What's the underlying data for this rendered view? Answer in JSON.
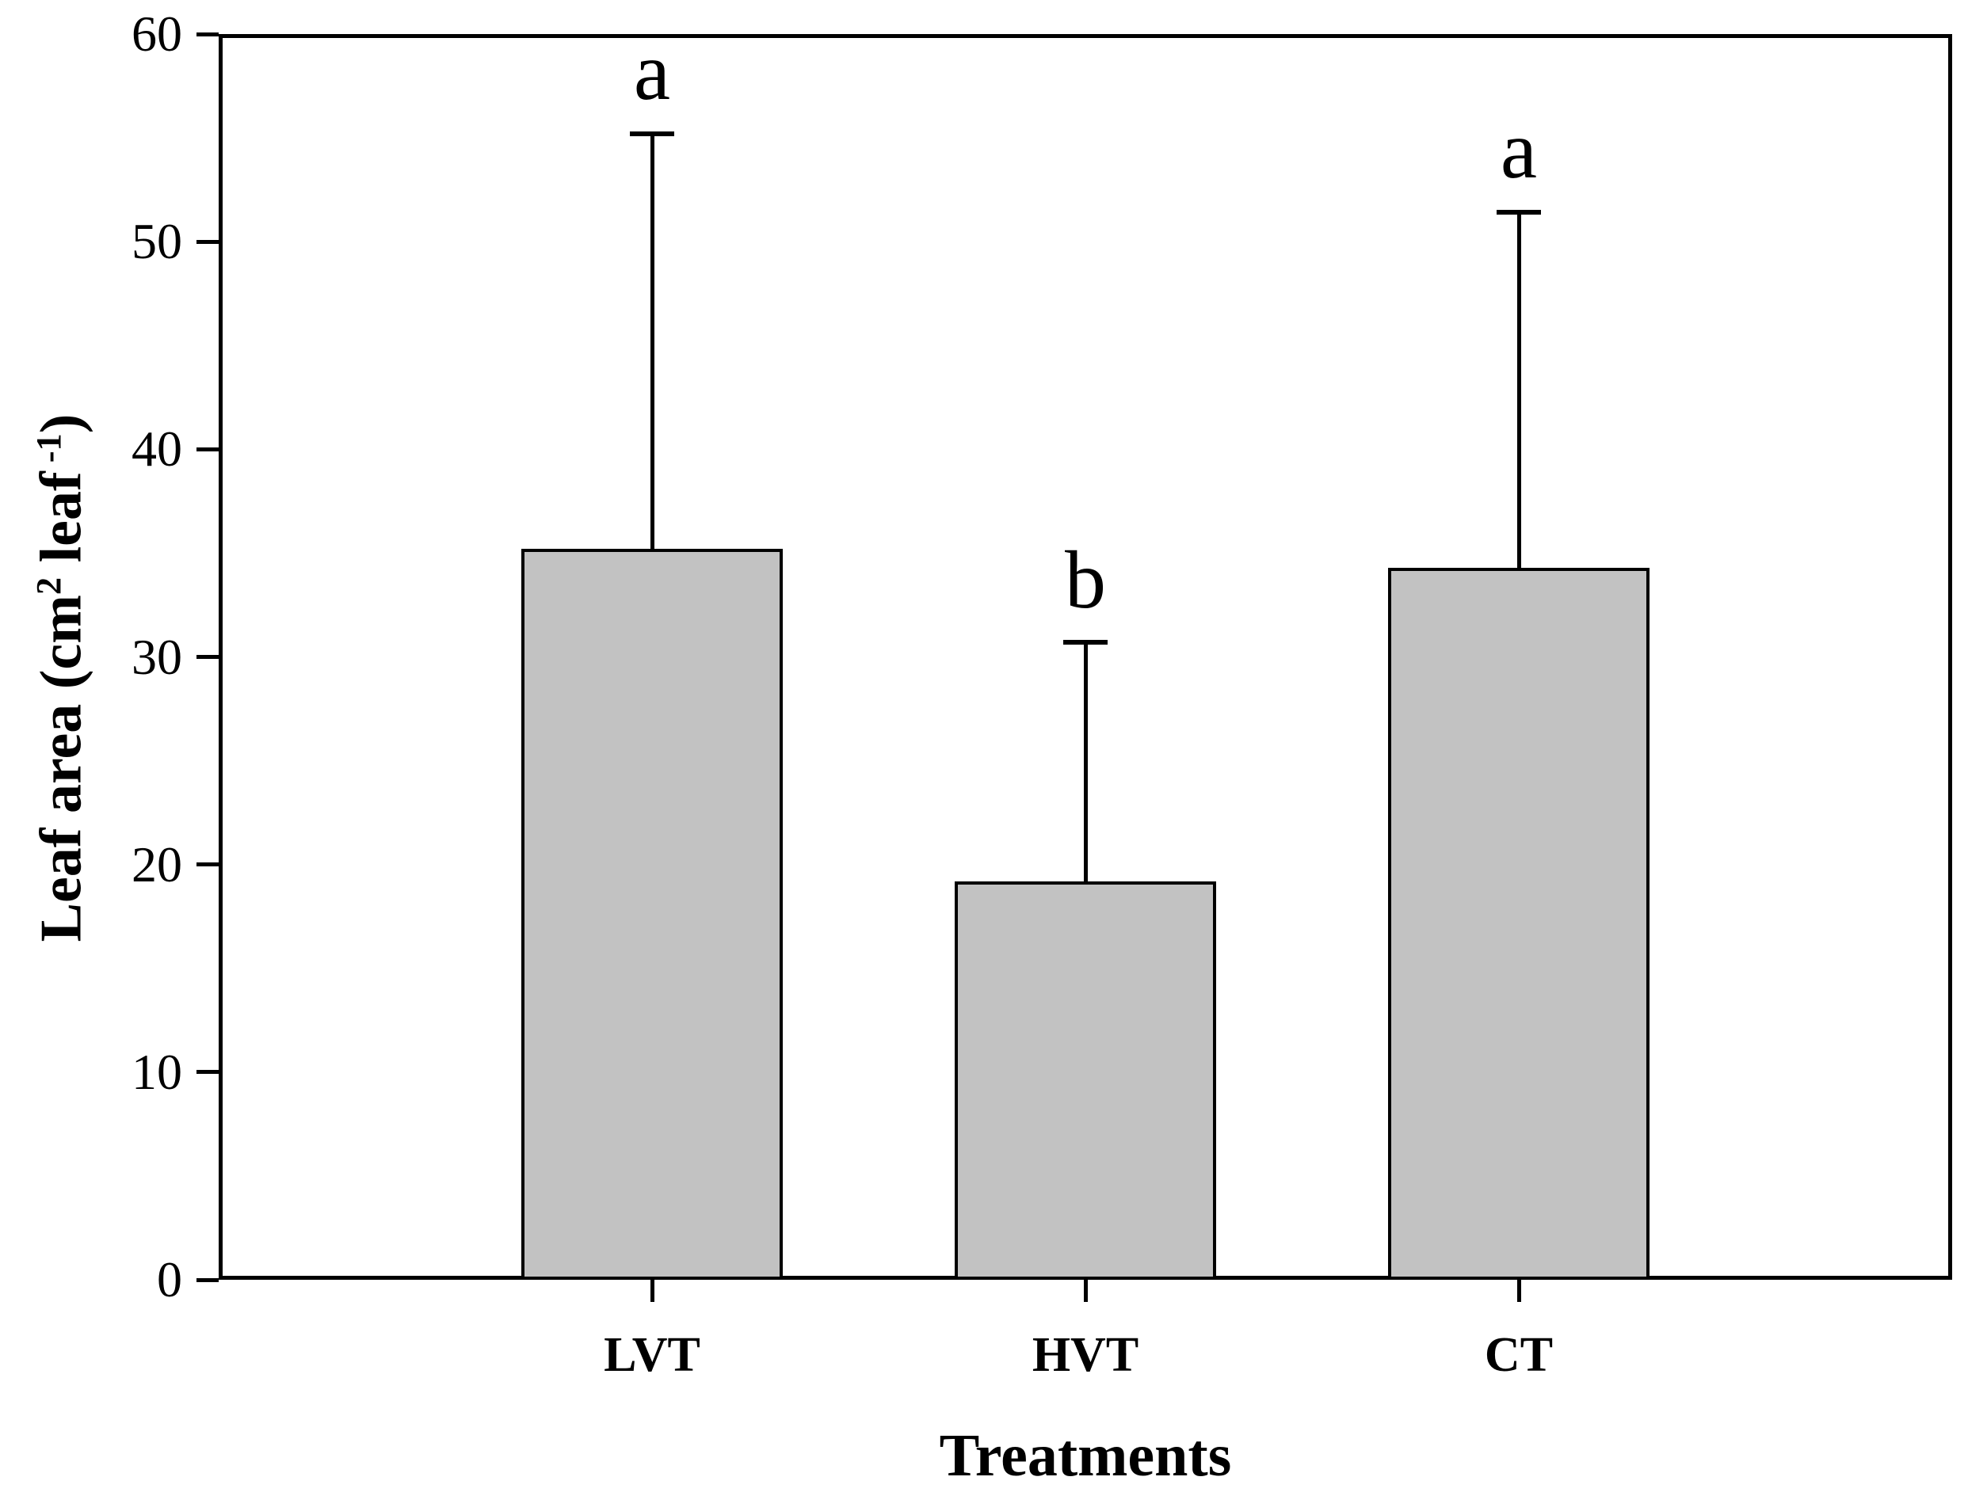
{
  "figure": {
    "background_color": "#ffffff",
    "frame_color": "#000000",
    "bar_fill_color": "#c2c2c2",
    "bar_border_color": "#000000",
    "text_color": "#000000"
  },
  "chart_data": {
    "type": "bar",
    "title": "",
    "categories": [
      "LVT",
      "HVT",
      "CT"
    ],
    "values": [
      35.2,
      19.2,
      34.3
    ],
    "error_plus": [
      20.0,
      11.5,
      17.1
    ],
    "significance_letters": [
      "a",
      "b",
      "a"
    ],
    "xlabel": "Treatments",
    "ylabel": "Leaf area (cm2 leaf -1)",
    "ylabel_parts": [
      {
        "text": "Leaf area (cm"
      },
      {
        "text": "2",
        "sup": true
      },
      {
        "text": " leaf"
      },
      {
        "text": " -1",
        "sup": true
      },
      {
        "text": ")"
      }
    ],
    "ylim": [
      0,
      60
    ],
    "yticks": [
      0,
      10,
      20,
      30,
      40,
      50,
      60
    ],
    "grid": false,
    "legend": null,
    "bar_color_hex": "#c2c2c2",
    "error_bar_direction": "plus-only"
  }
}
